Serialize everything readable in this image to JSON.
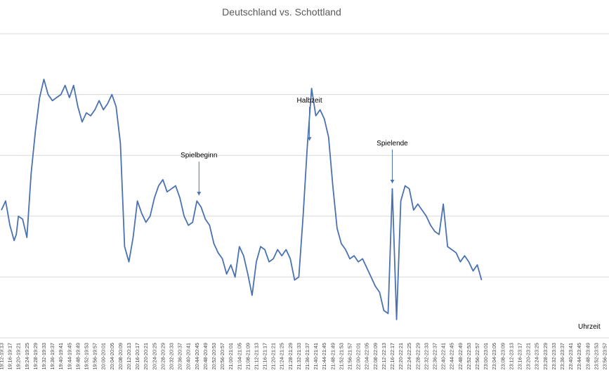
{
  "chart_data": {
    "type": "line",
    "title": "Deutschland vs. Schottland",
    "xlabel": "Uhrzeit",
    "ylabel": "",
    "grid": true,
    "legend": "none",
    "ylim": [
      0,
      5
    ],
    "x_ticks": [
      "19:12-19:13",
      "19:16-19:17",
      "19:20-19:21",
      "19:24-19:25",
      "19:28-19:29",
      "19:32-19:33",
      "19:36-19:37",
      "19:40-19:41",
      "19:44-19:45",
      "19:48-19:49",
      "19:52-19:53",
      "19:56-19:57",
      "20:00-20:01",
      "20:04-20:05",
      "20:08-20:09",
      "20:12-20:13",
      "20:16-20:17",
      "20:20-20:21",
      "20:24-20:25",
      "20:28-20:29",
      "20:32-20:33",
      "20:36-20:37",
      "20:40-20:41",
      "20:44-20:45",
      "20:48-20:49",
      "20:52-20:53",
      "20:56-20:57",
      "21:00-21:01",
      "21:04-21:05",
      "21:08-21:09",
      "21:12-21:13",
      "21:16-21:17",
      "21:20-21:21",
      "21:24-21:25",
      "21:28-21:29",
      "21:32-21:33",
      "21:36-21:37",
      "21:40-21:41",
      "21:44-21:45",
      "21:48-21:49",
      "21:52-21:53",
      "21:56-21:57",
      "22:00-22:01",
      "22:04-22:05",
      "22:08-22:09",
      "22:12-22:13",
      "22:16-22:17",
      "22:20-22:21",
      "22:24-22:25",
      "22:28-22:29",
      "22:32-22:33",
      "22:36-22:37",
      "22:40-22:41",
      "22:44-22:45",
      "22:48-22:49",
      "22:52-22:53",
      "22:56-22:57",
      "23:00-23:01",
      "23:04-23:05",
      "23:08-23:09",
      "23:12-23:13",
      "23:16-23:17",
      "23:20-23:21",
      "23:24-23:25",
      "23:28-23:29",
      "23:32-23:33",
      "23:36-23:37",
      "23:40-23:41",
      "23:44-23:45",
      "23:48-23:49",
      "23:52-23:53",
      "23:56-23:57"
    ],
    "series": [
      {
        "name": "",
        "color": "#4a72b0",
        "points": [
          [
            "19:12",
            2.1
          ],
          [
            "19:14",
            2.25
          ],
          [
            "19:16",
            1.85
          ],
          [
            "19:18",
            1.6
          ],
          [
            "19:19",
            1.7
          ],
          [
            "19:20",
            2.0
          ],
          [
            "19:22",
            1.95
          ],
          [
            "19:24",
            1.65
          ],
          [
            "19:26",
            2.7
          ],
          [
            "19:28",
            3.4
          ],
          [
            "19:30",
            3.95
          ],
          [
            "19:32",
            4.25
          ],
          [
            "19:34",
            4.0
          ],
          [
            "19:36",
            3.9
          ],
          [
            "19:38",
            3.95
          ],
          [
            "19:40",
            4.0
          ],
          [
            "19:42",
            4.15
          ],
          [
            "19:44",
            3.95
          ],
          [
            "19:46",
            4.15
          ],
          [
            "19:48",
            3.8
          ],
          [
            "19:50",
            3.55
          ],
          [
            "19:52",
            3.7
          ],
          [
            "19:54",
            3.65
          ],
          [
            "19:56",
            3.75
          ],
          [
            "19:58",
            3.9
          ],
          [
            "20:00",
            3.75
          ],
          [
            "20:02",
            3.85
          ],
          [
            "20:04",
            4.0
          ],
          [
            "20:06",
            3.8
          ],
          [
            "20:08",
            3.2
          ],
          [
            "20:10",
            1.5
          ],
          [
            "20:12",
            1.25
          ],
          [
            "20:14",
            1.65
          ],
          [
            "20:16",
            2.25
          ],
          [
            "20:18",
            2.05
          ],
          [
            "20:20",
            1.9
          ],
          [
            "20:22",
            2.0
          ],
          [
            "20:24",
            2.3
          ],
          [
            "20:26",
            2.5
          ],
          [
            "20:28",
            2.6
          ],
          [
            "20:30",
            2.4
          ],
          [
            "20:32",
            2.45
          ],
          [
            "20:34",
            2.5
          ],
          [
            "20:36",
            2.3
          ],
          [
            "20:38",
            2.0
          ],
          [
            "20:40",
            1.85
          ],
          [
            "20:42",
            1.9
          ],
          [
            "20:44",
            2.25
          ],
          [
            "20:46",
            2.15
          ],
          [
            "20:48",
            1.95
          ],
          [
            "20:50",
            1.85
          ],
          [
            "20:52",
            1.55
          ],
          [
            "20:54",
            1.4
          ],
          [
            "20:56",
            1.3
          ],
          [
            "20:58",
            1.05
          ],
          [
            "21:00",
            1.2
          ],
          [
            "21:02",
            1.0
          ],
          [
            "21:04",
            1.5
          ],
          [
            "21:06",
            1.35
          ],
          [
            "21:08",
            1.05
          ],
          [
            "21:10",
            0.7
          ],
          [
            "21:12",
            1.25
          ],
          [
            "21:14",
            1.5
          ],
          [
            "21:16",
            1.45
          ],
          [
            "21:18",
            1.25
          ],
          [
            "21:20",
            1.3
          ],
          [
            "21:22",
            1.45
          ],
          [
            "21:24",
            1.35
          ],
          [
            "21:26",
            1.45
          ],
          [
            "21:28",
            1.3
          ],
          [
            "21:30",
            0.95
          ],
          [
            "21:32",
            1.0
          ],
          [
            "21:34",
            2.0
          ],
          [
            "21:36",
            3.15
          ],
          [
            "21:38",
            4.1
          ],
          [
            "21:40",
            3.65
          ],
          [
            "21:42",
            3.75
          ],
          [
            "21:44",
            3.6
          ],
          [
            "21:46",
            3.3
          ],
          [
            "21:48",
            2.5
          ],
          [
            "21:50",
            1.8
          ],
          [
            "21:52",
            1.55
          ],
          [
            "21:54",
            1.45
          ],
          [
            "21:56",
            1.3
          ],
          [
            "21:58",
            1.35
          ],
          [
            "22:00",
            1.25
          ],
          [
            "22:02",
            1.3
          ],
          [
            "22:04",
            1.15
          ],
          [
            "22:06",
            1.0
          ],
          [
            "22:08",
            0.85
          ],
          [
            "22:10",
            0.75
          ],
          [
            "22:12",
            0.45
          ],
          [
            "22:14",
            0.4
          ],
          [
            "22:16",
            2.45
          ],
          [
            "22:18",
            0.3
          ],
          [
            "22:20",
            2.25
          ],
          [
            "22:22",
            2.5
          ],
          [
            "22:24",
            2.45
          ],
          [
            "22:26",
            2.1
          ],
          [
            "22:28",
            2.2
          ],
          [
            "22:30",
            2.1
          ],
          [
            "22:32",
            2.0
          ],
          [
            "22:34",
            1.85
          ],
          [
            "22:36",
            1.75
          ],
          [
            "22:38",
            1.7
          ],
          [
            "22:40",
            2.2
          ],
          [
            "22:42",
            1.5
          ],
          [
            "22:44",
            1.45
          ],
          [
            "22:46",
            1.4
          ],
          [
            "22:48",
            1.25
          ],
          [
            "22:50",
            1.35
          ],
          [
            "22:52",
            1.25
          ],
          [
            "22:54",
            1.1
          ],
          [
            "22:56",
            1.2
          ],
          [
            "22:58",
            0.95
          ]
        ]
      }
    ],
    "annotations": [
      {
        "label": "Spielbeginn",
        "x": "20:45"
      },
      {
        "label": "Halbzeit",
        "x": "21:37"
      },
      {
        "label": "Spielende",
        "x": "22:16"
      }
    ]
  }
}
